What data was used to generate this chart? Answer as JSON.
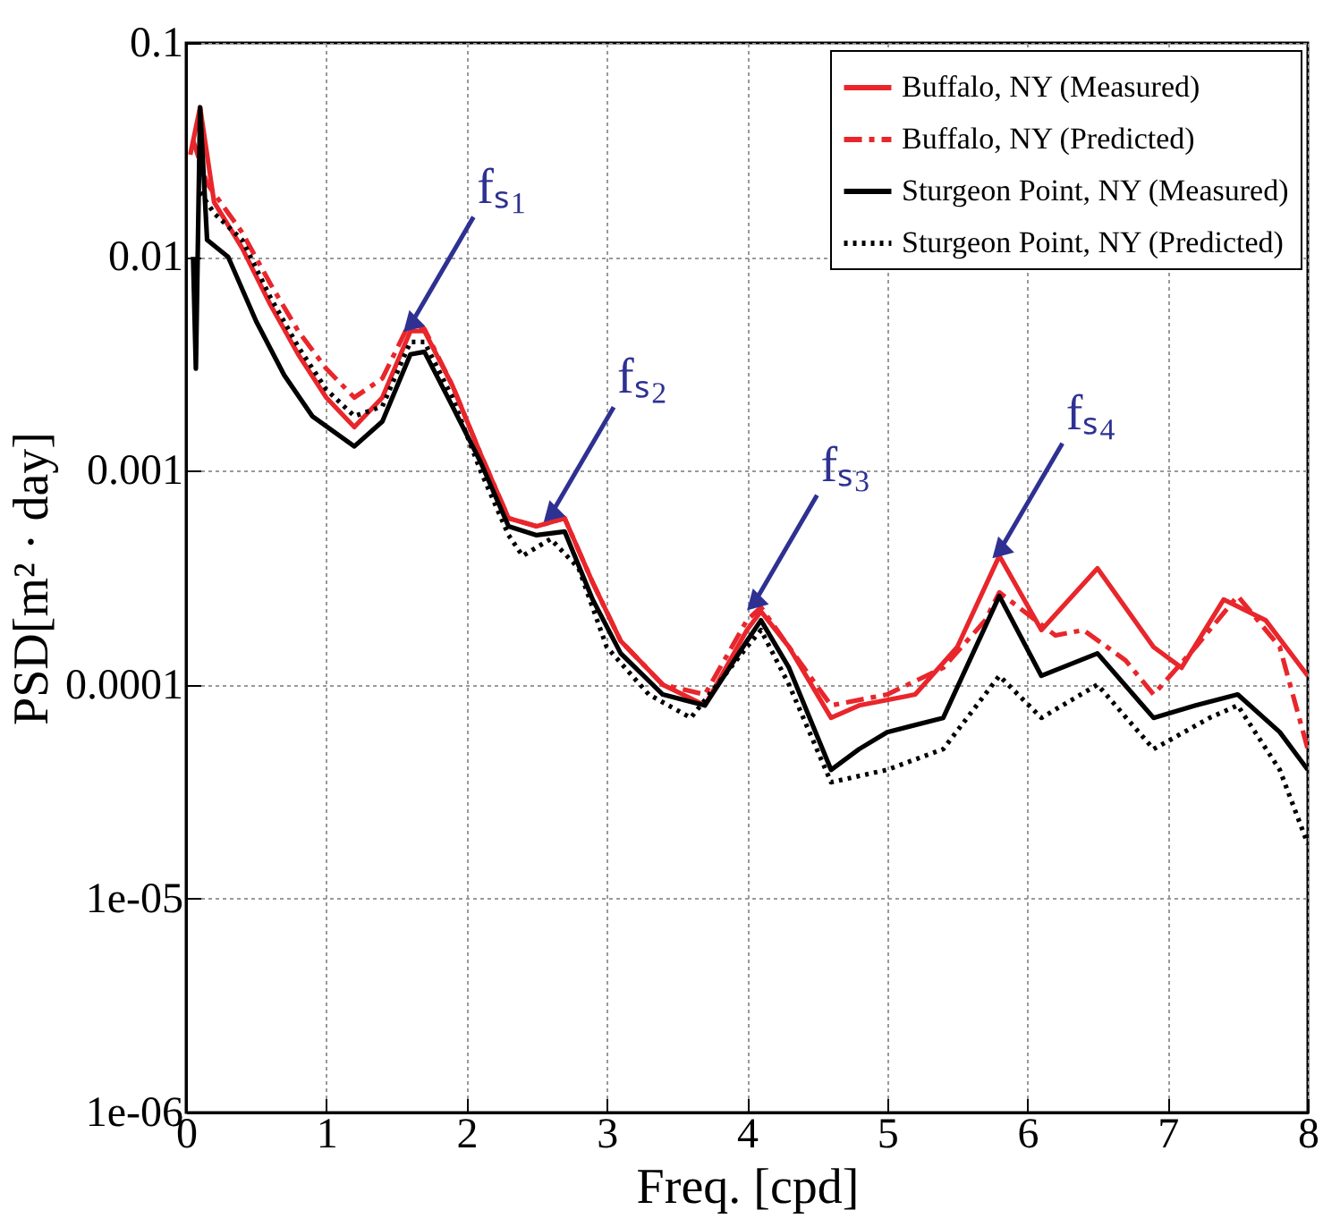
{
  "chart_data": {
    "type": "line",
    "xlabel": "Freq. [cpd]",
    "ylabel": "PSD[m² · day]",
    "log": "y",
    "grid": true,
    "legend": "top right",
    "xlim": [
      0,
      8
    ],
    "ylim": [
      1e-06,
      0.1
    ],
    "xticks": [
      0,
      1,
      2,
      3,
      4,
      5,
      6,
      7,
      8
    ],
    "yticks": [
      {
        "value": 1e-06,
        "label": "1e-06"
      },
      {
        "value": 1e-05,
        "label": "1e-05"
      },
      0.0001,
      0.001,
      0.01,
      0.1
    ],
    "series": [
      {
        "name": "Buffalo, NY (Measured)",
        "color": "#e8262b",
        "line_style": "solid",
        "x": [
          0.03,
          0.1,
          0.2,
          0.4,
          0.6,
          0.8,
          1.0,
          1.2,
          1.4,
          1.6,
          1.7,
          1.9,
          2.1,
          2.3,
          2.5,
          2.7,
          2.9,
          3.1,
          3.4,
          3.7,
          4.0,
          4.1,
          4.3,
          4.6,
          4.8,
          5.2,
          5.5,
          5.8,
          6.1,
          6.5,
          6.9,
          7.1,
          7.4,
          7.7,
          8
        ],
        "values": [
          0.03,
          0.05,
          0.018,
          0.011,
          0.006,
          0.0035,
          0.0022,
          0.0016,
          0.0022,
          0.0045,
          0.0045,
          0.0025,
          0.0012,
          0.0006,
          0.00055,
          0.0006,
          0.0003,
          0.00016,
          0.0001,
          8e-05,
          0.00018,
          0.00022,
          0.00015,
          7e-05,
          8e-05,
          9e-05,
          0.00015,
          0.0004,
          0.00018,
          0.00035,
          0.00015,
          0.00012,
          0.00025,
          0.0002,
          0.00011
        ]
      },
      {
        "name": "Buffalo, NY (Predicted)",
        "color": "#e8262b",
        "line_style": "dashed",
        "x": [
          0.05,
          0.15,
          0.4,
          0.6,
          0.8,
          1.0,
          1.2,
          1.4,
          1.6,
          1.7,
          1.9,
          2.1,
          2.3,
          2.5,
          2.7,
          2.9,
          3.1,
          3.4,
          3.7,
          4.0,
          4.1,
          4.3,
          4.6,
          5.0,
          5.4,
          5.7,
          5.8,
          6.2,
          6.4,
          6.7,
          6.9,
          7.2,
          7.5,
          7.8,
          8
        ],
        "values": [
          0.035,
          0.022,
          0.013,
          0.0075,
          0.0045,
          0.003,
          0.0022,
          0.0027,
          0.005,
          0.0046,
          0.0025,
          0.0012,
          0.0006,
          0.00055,
          0.0006,
          0.0003,
          0.00016,
          0.0001,
          9e-05,
          0.0002,
          0.00023,
          0.00015,
          8e-05,
          9e-05,
          0.00012,
          0.0002,
          0.00027,
          0.00017,
          0.00018,
          0.00013,
          9e-05,
          0.00015,
          0.00026,
          0.00015,
          5e-05
        ]
      },
      {
        "name": "Sturgeon Point, NY (Measured)",
        "color": "#000000",
        "line_style": "solid",
        "x": [
          0.05,
          0.07,
          0.1,
          0.15,
          0.3,
          0.5,
          0.7,
          0.9,
          1.2,
          1.4,
          1.6,
          1.7,
          1.9,
          2.1,
          2.3,
          2.5,
          2.7,
          2.9,
          3.1,
          3.4,
          3.7,
          4.0,
          4.1,
          4.3,
          4.6,
          4.8,
          5.0,
          5.4,
          5.8,
          6.1,
          6.5,
          6.9,
          7.2,
          7.5,
          7.8,
          8
        ],
        "values": [
          0.01,
          0.003,
          0.05,
          0.012,
          0.01,
          0.005,
          0.0028,
          0.0018,
          0.0013,
          0.0017,
          0.0035,
          0.0036,
          0.002,
          0.0011,
          0.00055,
          0.0005,
          0.00052,
          0.00025,
          0.00014,
          9e-05,
          8e-05,
          0.00016,
          0.0002,
          0.00012,
          4e-05,
          5e-05,
          6e-05,
          7e-05,
          0.00026,
          0.00011,
          0.00014,
          7e-05,
          8e-05,
          9e-05,
          6e-05,
          4e-05
        ]
      },
      {
        "name": "Sturgeon Point, NY (Predicted)",
        "color": "#000000",
        "line_style": "dotted",
        "x": [
          0.1,
          0.2,
          0.4,
          0.6,
          0.8,
          1.0,
          1.2,
          1.4,
          1.6,
          1.7,
          1.9,
          2.1,
          2.3,
          2.4,
          2.6,
          2.8,
          3.0,
          3.3,
          3.6,
          4.0,
          4.1,
          4.3,
          4.6,
          5.0,
          5.4,
          5.8,
          6.1,
          6.5,
          6.9,
          7.3,
          7.5,
          7.8,
          8
        ],
        "values": [
          0.02,
          0.016,
          0.012,
          0.0065,
          0.0038,
          0.0024,
          0.0018,
          0.002,
          0.004,
          0.004,
          0.0022,
          0.001,
          0.0005,
          0.0004,
          0.00048,
          0.00035,
          0.00015,
          9e-05,
          7e-05,
          0.00015,
          0.00018,
          0.0001,
          3.5e-05,
          4e-05,
          5e-05,
          0.00011,
          7e-05,
          0.0001,
          5e-05,
          7e-05,
          8e-05,
          4e-05,
          1.8e-05
        ]
      }
    ],
    "annotations": [
      {
        "text": "fₛ₁",
        "x": 1.6,
        "y": 0.0048
      },
      {
        "text": "fₛ₂",
        "x": 2.6,
        "y": 0.00062
      },
      {
        "text": "fₛ₃",
        "x": 4.05,
        "y": 0.00024
      },
      {
        "text": "fₛ₄",
        "x": 5.8,
        "y": 0.00042
      }
    ]
  }
}
